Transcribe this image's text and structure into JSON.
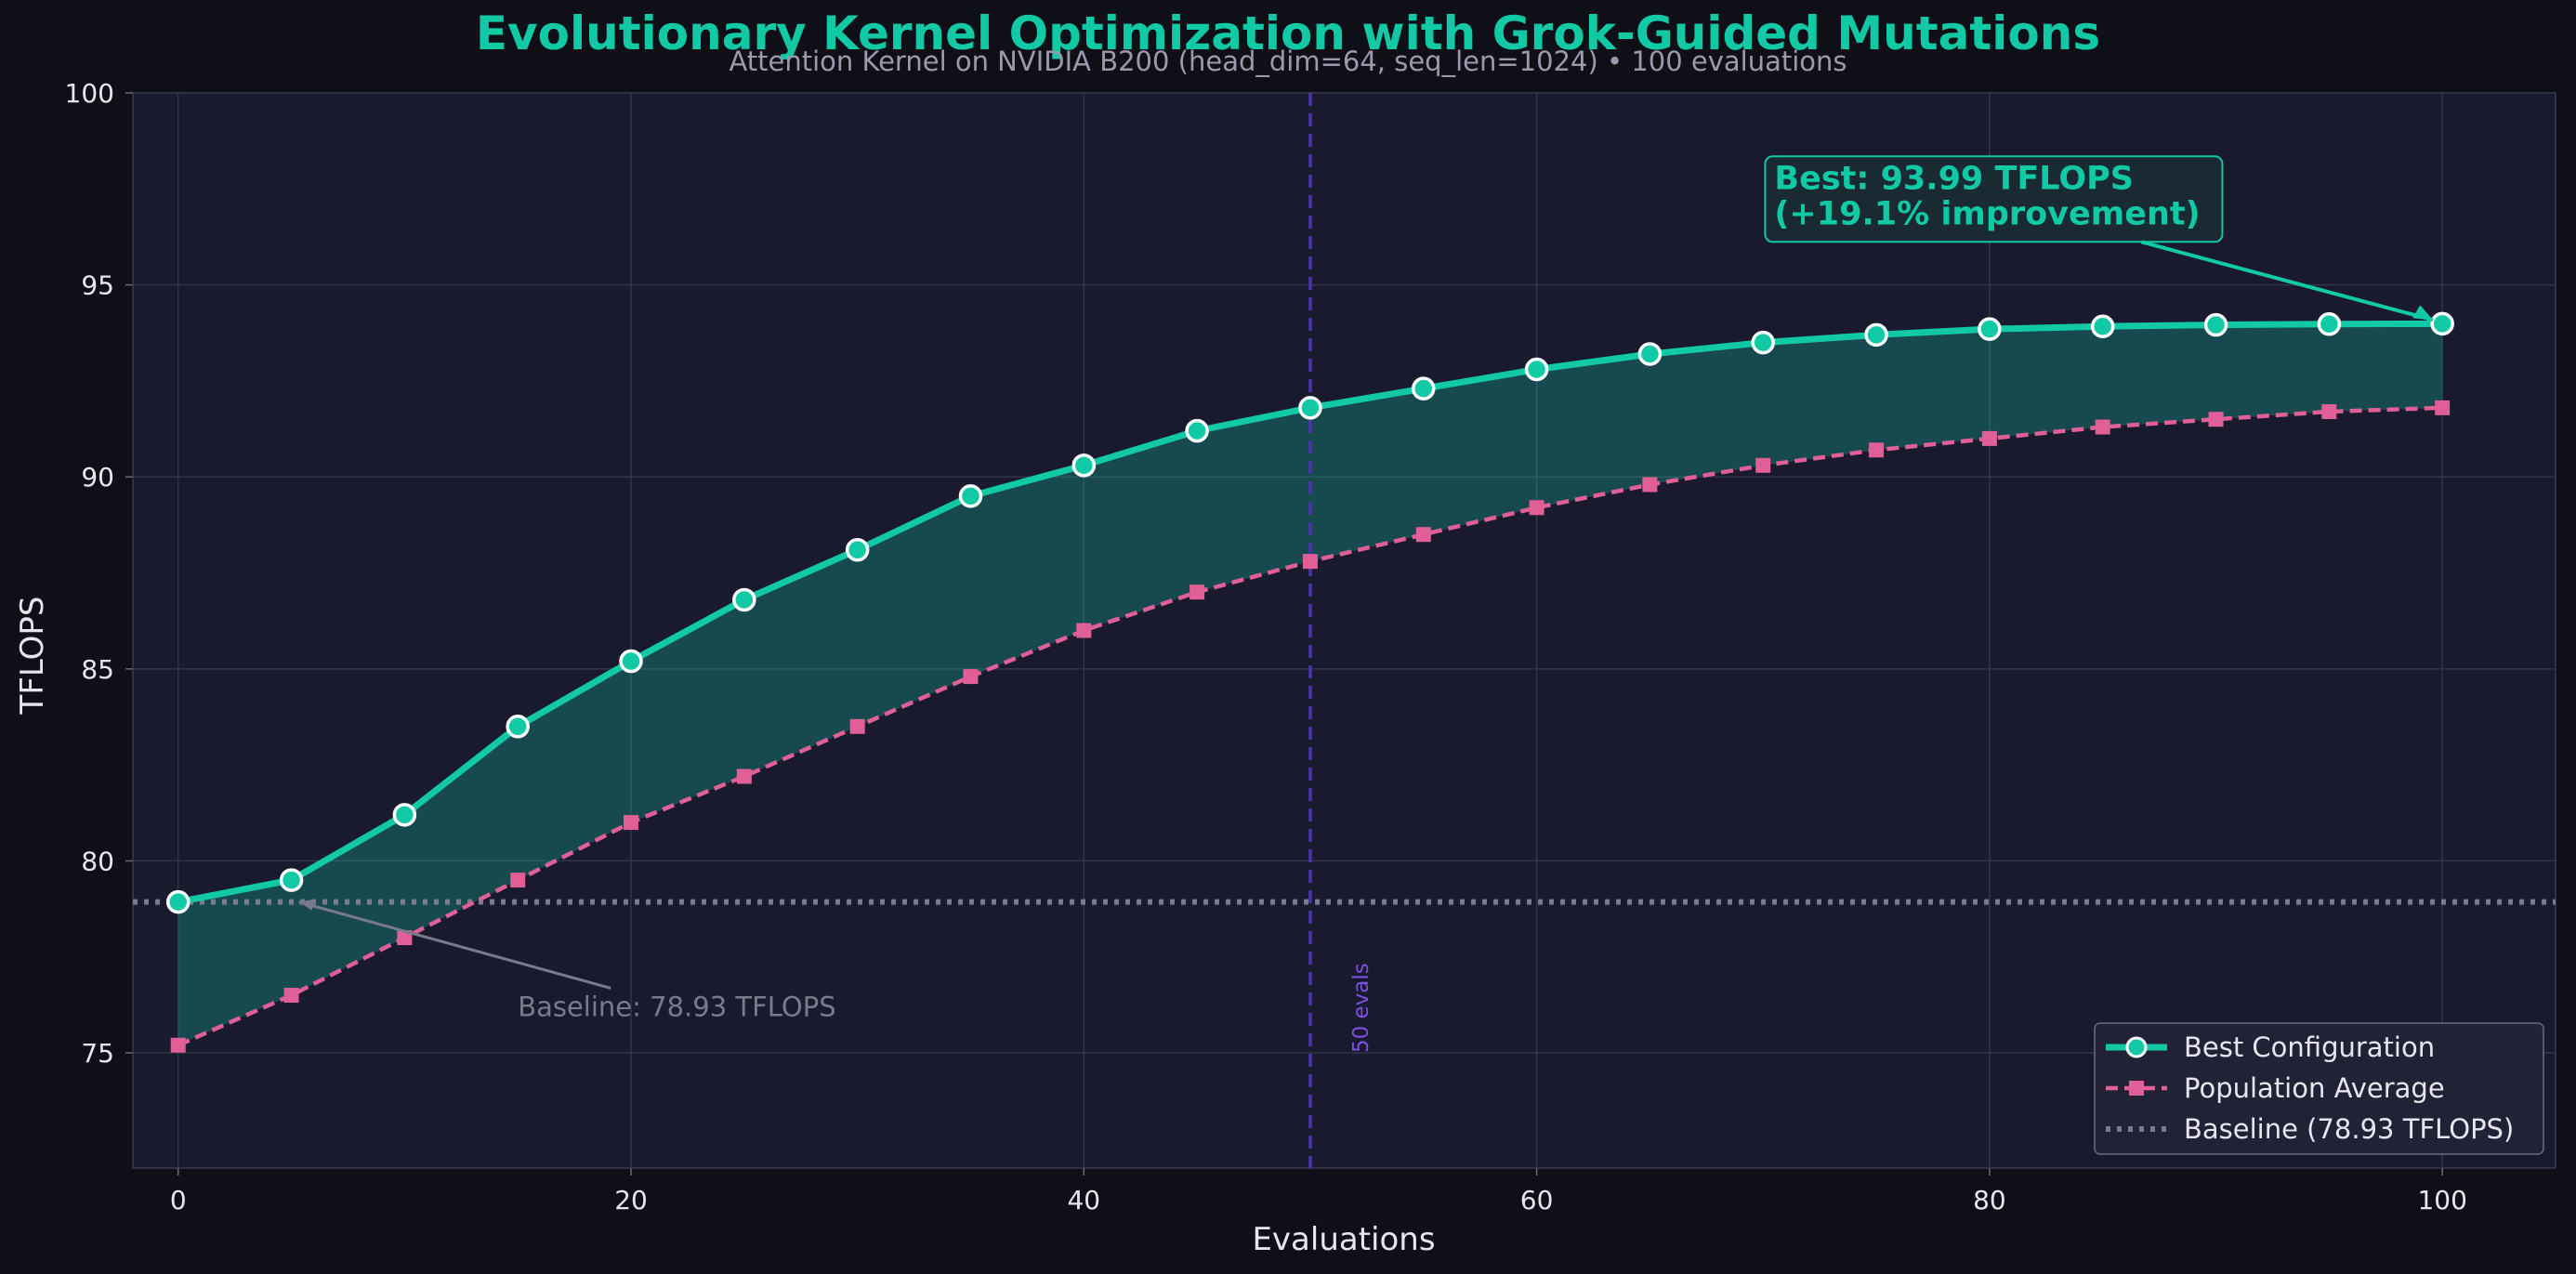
{
  "chart_data": {
    "type": "line",
    "title": "Evolutionary Kernel Optimization with Grok-Guided Mutations",
    "subtitle": "Attention Kernel on NVIDIA B200 (head_dim=64, seq_len=1024) • 100 evaluations",
    "xlabel": "Evaluations",
    "ylabel": "TFLOPS",
    "xlim": [
      -2,
      105
    ],
    "ylim": [
      72,
      100
    ],
    "xticks": [
      0,
      20,
      40,
      60,
      80,
      100
    ],
    "yticks": [
      75,
      80,
      85,
      90,
      95,
      100
    ],
    "grid": true,
    "legend_position": "bottom-right",
    "x": [
      0,
      5,
      10,
      15,
      20,
      25,
      30,
      35,
      40,
      45,
      50,
      55,
      60,
      65,
      70,
      75,
      80,
      85,
      90,
      95,
      100
    ],
    "series": [
      {
        "name": "Best Configuration",
        "color": "#12c9a6",
        "style": "solid-circle",
        "values": [
          78.93,
          79.5,
          81.2,
          83.5,
          85.2,
          86.8,
          88.1,
          89.5,
          90.3,
          91.2,
          91.8,
          92.3,
          92.8,
          93.2,
          93.5,
          93.7,
          93.85,
          93.92,
          93.96,
          93.98,
          93.99
        ]
      },
      {
        "name": "Population Average",
        "color": "#e05f97",
        "style": "dashed-square",
        "values": [
          75.2,
          76.5,
          78.0,
          79.5,
          81.0,
          82.2,
          83.5,
          84.8,
          86.0,
          87.0,
          87.8,
          88.5,
          89.2,
          89.8,
          90.3,
          90.7,
          91.0,
          91.3,
          91.5,
          91.7,
          91.8
        ]
      },
      {
        "name": "Baseline (78.93 TFLOPS)",
        "color": "#7a7a8c",
        "style": "dotted-hline",
        "y": 78.93
      }
    ],
    "annotations": {
      "best_line1": "Best: 93.99 TFLOPS",
      "best_line2": "(+19.1% improvement)",
      "best_point": [
        100,
        93.99
      ],
      "best_text_at": [
        70.5,
        97.5
      ],
      "baseline_label": "Baseline: 78.93 TFLOPS",
      "baseline_point": [
        5,
        78.93
      ],
      "baseline_text_at": [
        15,
        76.2
      ],
      "vline_x": 50,
      "vline_label": "50 evals"
    }
  }
}
